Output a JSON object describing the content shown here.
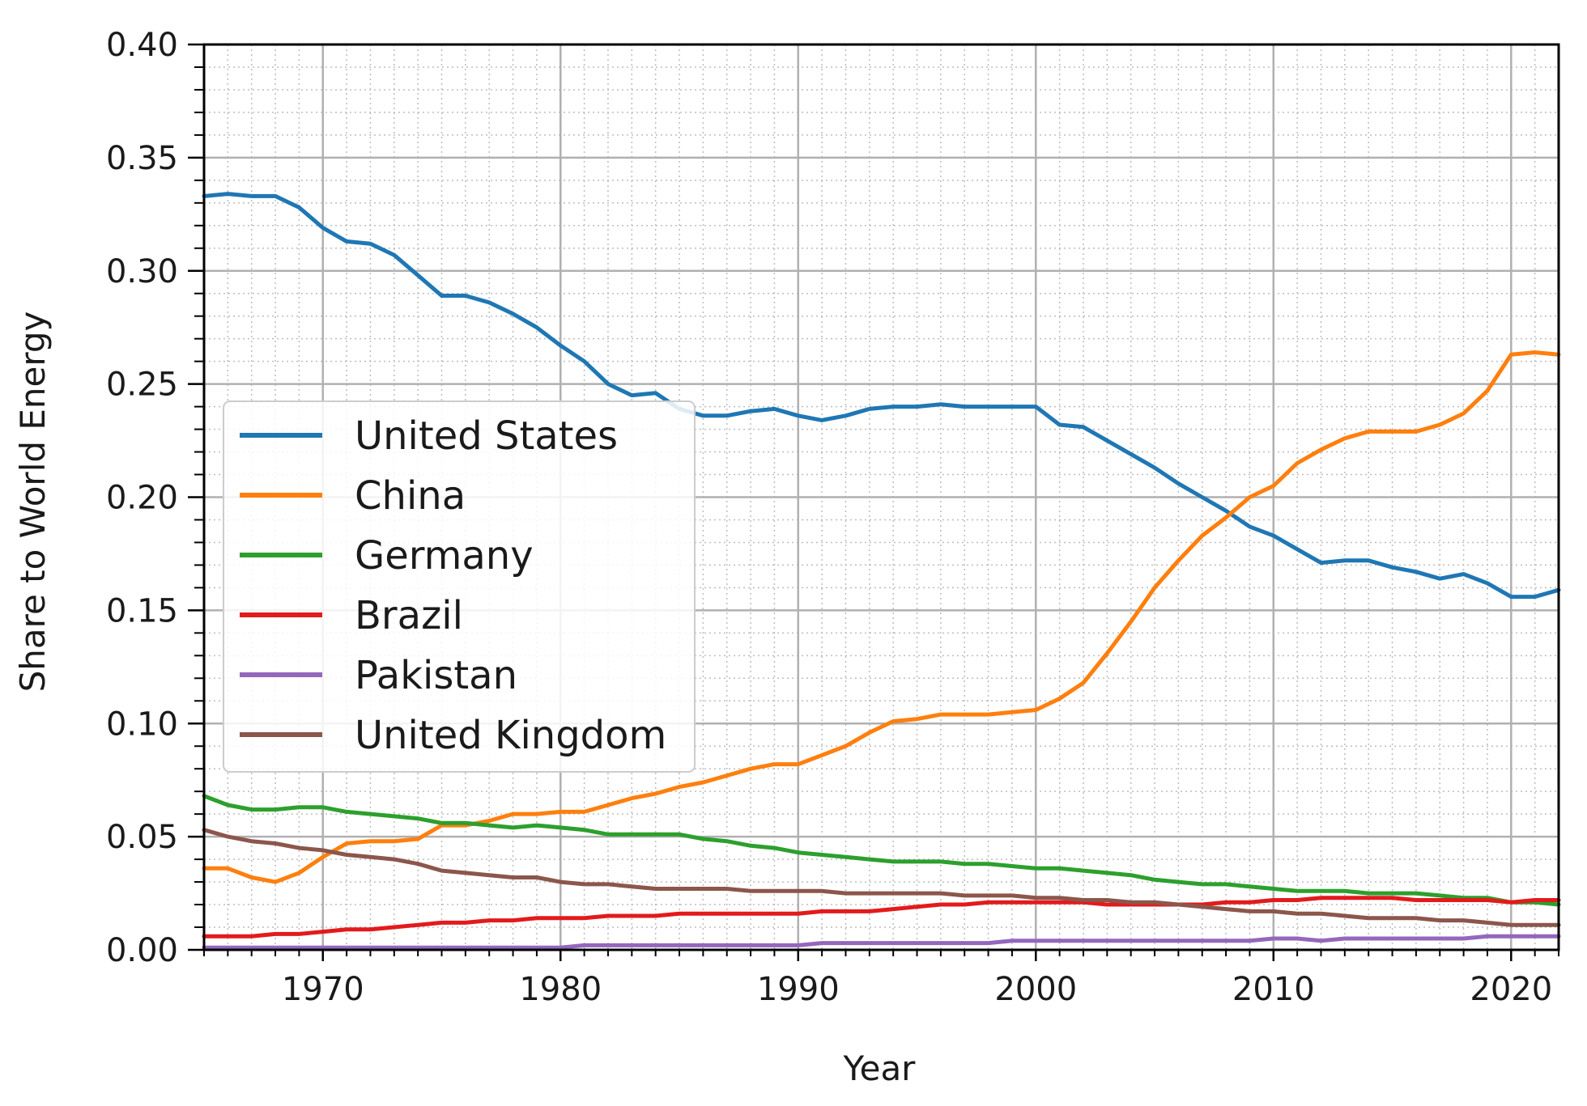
{
  "chart_data": {
    "type": "line",
    "title": "",
    "xlabel": "Year",
    "ylabel": "Share to World Energy",
    "xlim": [
      1965,
      2022
    ],
    "ylim": [
      0.0,
      0.4
    ],
    "grid": "major solid, minor dotted",
    "legend_position": "center-left",
    "x_ticks": [
      1970,
      1980,
      1990,
      2000,
      2010,
      2020
    ],
    "x_tick_labels": [
      "1970",
      "1980",
      "1990",
      "2000",
      "2010",
      "2020"
    ],
    "y_ticks": [
      0.0,
      0.05,
      0.1,
      0.15,
      0.2,
      0.25,
      0.3,
      0.35,
      0.4
    ],
    "y_tick_labels": [
      "0.00",
      "0.05",
      "0.10",
      "0.15",
      "0.20",
      "0.25",
      "0.30",
      "0.35",
      "0.40"
    ],
    "x": [
      1965,
      1966,
      1967,
      1968,
      1969,
      1970,
      1971,
      1972,
      1973,
      1974,
      1975,
      1976,
      1977,
      1978,
      1979,
      1980,
      1981,
      1982,
      1983,
      1984,
      1985,
      1986,
      1987,
      1988,
      1989,
      1990,
      1991,
      1992,
      1993,
      1994,
      1995,
      1996,
      1997,
      1998,
      1999,
      2000,
      2001,
      2002,
      2003,
      2004,
      2005,
      2006,
      2007,
      2008,
      2009,
      2010,
      2011,
      2012,
      2013,
      2014,
      2015,
      2016,
      2017,
      2018,
      2019,
      2020,
      2021,
      2022
    ],
    "series": [
      {
        "name": "United States",
        "color": "#1f77b4",
        "values": [
          0.333,
          0.334,
          0.333,
          0.333,
          0.328,
          0.319,
          0.313,
          0.312,
          0.307,
          0.298,
          0.289,
          0.289,
          0.286,
          0.281,
          0.275,
          0.267,
          0.26,
          0.25,
          0.245,
          0.246,
          0.239,
          0.236,
          0.236,
          0.238,
          0.239,
          0.236,
          0.234,
          0.236,
          0.239,
          0.24,
          0.24,
          0.241,
          0.24,
          0.24,
          0.24,
          0.24,
          0.232,
          0.231,
          0.225,
          0.219,
          0.213,
          0.206,
          0.2,
          0.194,
          0.187,
          0.183,
          0.177,
          0.171,
          0.172,
          0.172,
          0.169,
          0.167,
          0.164,
          0.166,
          0.162,
          0.156,
          0.156,
          0.159
        ]
      },
      {
        "name": "China",
        "color": "#ff7f0e",
        "values": [
          0.036,
          0.036,
          0.032,
          0.03,
          0.034,
          0.041,
          0.047,
          0.048,
          0.048,
          0.049,
          0.055,
          0.055,
          0.057,
          0.06,
          0.06,
          0.061,
          0.061,
          0.064,
          0.067,
          0.069,
          0.072,
          0.074,
          0.077,
          0.08,
          0.082,
          0.082,
          0.086,
          0.09,
          0.096,
          0.101,
          0.102,
          0.104,
          0.104,
          0.104,
          0.105,
          0.106,
          0.111,
          0.118,
          0.131,
          0.145,
          0.16,
          0.172,
          0.183,
          0.191,
          0.2,
          0.205,
          0.215,
          0.221,
          0.226,
          0.229,
          0.229,
          0.229,
          0.232,
          0.237,
          0.247,
          0.263,
          0.264,
          0.263
        ]
      },
      {
        "name": "Germany",
        "color": "#2ca02c",
        "values": [
          0.068,
          0.064,
          0.062,
          0.062,
          0.063,
          0.063,
          0.061,
          0.06,
          0.059,
          0.058,
          0.056,
          0.056,
          0.055,
          0.054,
          0.055,
          0.054,
          0.053,
          0.051,
          0.051,
          0.051,
          0.051,
          0.049,
          0.048,
          0.046,
          0.045,
          0.043,
          0.042,
          0.041,
          0.04,
          0.039,
          0.039,
          0.039,
          0.038,
          0.038,
          0.037,
          0.036,
          0.036,
          0.035,
          0.034,
          0.033,
          0.031,
          0.03,
          0.029,
          0.029,
          0.028,
          0.027,
          0.026,
          0.026,
          0.026,
          0.025,
          0.025,
          0.025,
          0.024,
          0.023,
          0.023,
          0.021,
          0.021,
          0.02
        ]
      },
      {
        "name": "Brazil",
        "color": "#e31a1c",
        "values": [
          0.006,
          0.006,
          0.006,
          0.007,
          0.007,
          0.008,
          0.009,
          0.009,
          0.01,
          0.011,
          0.012,
          0.012,
          0.013,
          0.013,
          0.014,
          0.014,
          0.014,
          0.015,
          0.015,
          0.015,
          0.016,
          0.016,
          0.016,
          0.016,
          0.016,
          0.016,
          0.017,
          0.017,
          0.017,
          0.018,
          0.019,
          0.02,
          0.02,
          0.021,
          0.021,
          0.021,
          0.021,
          0.021,
          0.02,
          0.02,
          0.02,
          0.02,
          0.02,
          0.021,
          0.021,
          0.022,
          0.022,
          0.023,
          0.023,
          0.023,
          0.023,
          0.022,
          0.022,
          0.022,
          0.022,
          0.021,
          0.022,
          0.022
        ]
      },
      {
        "name": "Pakistan",
        "color": "#9467bd",
        "values": [
          0.001,
          0.001,
          0.001,
          0.001,
          0.001,
          0.001,
          0.001,
          0.001,
          0.001,
          0.001,
          0.001,
          0.001,
          0.001,
          0.001,
          0.001,
          0.001,
          0.002,
          0.002,
          0.002,
          0.002,
          0.002,
          0.002,
          0.002,
          0.002,
          0.002,
          0.002,
          0.003,
          0.003,
          0.003,
          0.003,
          0.003,
          0.003,
          0.003,
          0.003,
          0.004,
          0.004,
          0.004,
          0.004,
          0.004,
          0.004,
          0.004,
          0.004,
          0.004,
          0.004,
          0.004,
          0.005,
          0.005,
          0.004,
          0.005,
          0.005,
          0.005,
          0.005,
          0.005,
          0.005,
          0.006,
          0.006,
          0.006,
          0.006
        ]
      },
      {
        "name": "United Kingdom",
        "color": "#8c564b",
        "values": [
          0.053,
          0.05,
          0.048,
          0.047,
          0.045,
          0.044,
          0.042,
          0.041,
          0.04,
          0.038,
          0.035,
          0.034,
          0.033,
          0.032,
          0.032,
          0.03,
          0.029,
          0.029,
          0.028,
          0.027,
          0.027,
          0.027,
          0.027,
          0.026,
          0.026,
          0.026,
          0.026,
          0.025,
          0.025,
          0.025,
          0.025,
          0.025,
          0.024,
          0.024,
          0.024,
          0.023,
          0.023,
          0.022,
          0.022,
          0.021,
          0.021,
          0.02,
          0.019,
          0.018,
          0.017,
          0.017,
          0.016,
          0.016,
          0.015,
          0.014,
          0.014,
          0.014,
          0.013,
          0.013,
          0.012,
          0.011,
          0.011,
          0.011
        ]
      }
    ]
  }
}
